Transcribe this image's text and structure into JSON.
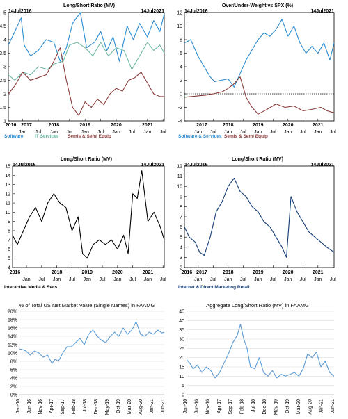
{
  "colors": {
    "blue": "#2a8bd0",
    "teal": "#6ab8a4",
    "maroon": "#8b3a3a",
    "navy": "#123a73",
    "black": "#000000",
    "lightblue": "#5b9bd5"
  },
  "chart_data": [
    {
      "type": "line",
      "title": "Long/Short Ratio (MV)",
      "date_left": "14Jul2016",
      "date_right": "14Jul2021",
      "ylim": [
        1,
        5
      ],
      "yticks": [
        "1",
        "1.5",
        "2",
        "2.5",
        "3",
        "3.5",
        "4",
        "4.5",
        "5"
      ],
      "years": [
        "2016",
        "2017",
        "2018",
        "2019",
        "2020",
        "2021"
      ],
      "months": [
        "Jan",
        "Jul",
        "Jan",
        "Jul",
        "Jan",
        "Jul",
        "Jan",
        "Jul",
        "Jan",
        "Jul"
      ],
      "series": [
        {
          "name": "Software",
          "color": "#2a8bd0",
          "x": [
            2016.54,
            2016.75,
            2016.95,
            2017.05,
            2017.25,
            2017.5,
            2017.75,
            2018.0,
            2018.2,
            2018.4,
            2018.6,
            2018.85,
            2019.05,
            2019.3,
            2019.5,
            2019.7,
            2019.9,
            2020.1,
            2020.35,
            2020.55,
            2020.75,
            2021.0,
            2021.2,
            2021.4,
            2021.54
          ],
          "y": [
            3.8,
            4.3,
            4.8,
            3.8,
            3.4,
            3.6,
            4.0,
            3.9,
            3.2,
            3.7,
            4.6,
            5.0,
            3.7,
            3.9,
            4.3,
            3.6,
            4.1,
            3.2,
            4.5,
            4.0,
            4.6,
            4.1,
            4.7,
            4.3,
            4.95
          ]
        },
        {
          "name": "IT Services",
          "color": "#6ab8a4",
          "x": [
            2016.54,
            2016.75,
            2017.0,
            2017.25,
            2017.5,
            2017.8,
            2018.0,
            2018.3,
            2018.5,
            2018.75,
            2019.0,
            2019.25,
            2019.5,
            2019.75,
            2020.0,
            2020.25,
            2020.5,
            2020.75,
            2021.0,
            2021.2,
            2021.4,
            2021.54
          ],
          "y": [
            2.7,
            2.5,
            2.8,
            2.7,
            3.0,
            2.9,
            3.1,
            3.2,
            3.8,
            3.9,
            3.7,
            3.4,
            3.9,
            3.4,
            3.7,
            3.6,
            2.9,
            3.4,
            3.9,
            3.6,
            3.8,
            3.5
          ]
        },
        {
          "name": "Semis & Semi Equip",
          "color": "#8b3a3a",
          "x": [
            2016.54,
            2016.75,
            2017.0,
            2017.25,
            2017.5,
            2017.75,
            2018.0,
            2018.2,
            2018.4,
            2018.6,
            2018.8,
            2019.0,
            2019.2,
            2019.4,
            2019.6,
            2019.8,
            2020.0,
            2020.2,
            2020.4,
            2020.6,
            2020.8,
            2021.0,
            2021.2,
            2021.4,
            2021.54
          ],
          "y": [
            2.0,
            2.3,
            2.8,
            2.5,
            2.6,
            2.7,
            3.2,
            3.7,
            2.5,
            1.5,
            1.2,
            1.7,
            1.5,
            1.8,
            1.6,
            2.0,
            2.2,
            2.1,
            2.5,
            2.6,
            2.8,
            2.4,
            2.0,
            1.9,
            1.9
          ]
        }
      ]
    },
    {
      "type": "line",
      "title": "Over/Under-Weight vs SPX (%)",
      "date_left": "14Jul2016",
      "date_right": "14Jul2021",
      "ylim": [
        -4,
        12
      ],
      "yticks": [
        "-4",
        "-2",
        "0",
        "2",
        "4",
        "6",
        "8",
        "10",
        "12"
      ],
      "years": [
        "2017",
        "2018",
        "2019",
        "2020",
        "2021"
      ],
      "months": [
        "Jan",
        "Jul",
        "Jan",
        "Jul",
        "Jan",
        "Jul",
        "Jan",
        "Jul",
        "Jan",
        "Jul"
      ],
      "series": [
        {
          "name": "Software & Services",
          "color": "#2a8bd0",
          "x": [
            2016.54,
            2016.75,
            2017.0,
            2017.2,
            2017.4,
            2017.55,
            2017.75,
            2018.0,
            2018.2,
            2018.4,
            2018.6,
            2018.8,
            2019.0,
            2019.2,
            2019.4,
            2019.6,
            2019.8,
            2020.0,
            2020.2,
            2020.4,
            2020.6,
            2020.8,
            2021.0,
            2021.2,
            2021.4,
            2021.54
          ],
          "y": [
            7.5,
            8.0,
            5.5,
            4.0,
            2.5,
            1.8,
            2.0,
            2.2,
            1.0,
            3.0,
            5.0,
            6.5,
            8.0,
            9.0,
            8.5,
            9.5,
            11.0,
            8.5,
            10.0,
            7.5,
            6.0,
            7.0,
            6.0,
            7.5,
            5.0,
            7.5
          ]
        },
        {
          "name": "Semis & Semi Equip",
          "color": "#8b3a3a",
          "x": [
            2016.54,
            2016.75,
            2017.0,
            2017.25,
            2017.5,
            2017.8,
            2018.0,
            2018.2,
            2018.4,
            2018.6,
            2018.8,
            2019.0,
            2019.3,
            2019.6,
            2019.9,
            2020.2,
            2020.5,
            2020.8,
            2021.1,
            2021.3,
            2021.54
          ],
          "y": [
            -0.5,
            -0.4,
            -0.3,
            -0.2,
            0.0,
            0.3,
            0.8,
            1.5,
            2.5,
            -0.5,
            -2.0,
            -3.0,
            -2.3,
            -1.5,
            -2.0,
            -1.8,
            -2.5,
            -2.3,
            -2.0,
            -2.5,
            -2.8
          ]
        }
      ],
      "zero_line": true
    },
    {
      "type": "line",
      "title": "Long/Short Ratio (MV)",
      "date_left": "14Jul2016",
      "date_right": "14Jul2021",
      "ylim": [
        4,
        15
      ],
      "yticks": [
        "4",
        "5",
        "6",
        "7",
        "8",
        "9",
        "10",
        "11",
        "12",
        "13",
        "14",
        "15"
      ],
      "years": [
        "2016",
        "2018",
        "2019",
        "2020",
        "2021"
      ],
      "months": [
        "Jan",
        "Jul",
        "Jan",
        "Jul",
        "Jan",
        "Jul",
        "Jan",
        "Jul",
        "Jan",
        "Jul"
      ],
      "series": [
        {
          "name": "Interactive Media & Svcs",
          "color": "#000000",
          "x": [
            2016.54,
            2016.7,
            2016.9,
            2017.1,
            2017.3,
            2017.5,
            2017.7,
            2017.9,
            2018.1,
            2018.3,
            2018.5,
            2018.7,
            2018.85,
            2019.0,
            2019.2,
            2019.4,
            2019.6,
            2019.8,
            2020.0,
            2020.2,
            2020.35,
            2020.5,
            2020.65,
            2020.8,
            2021.0,
            2021.2,
            2021.4,
            2021.54
          ],
          "y": [
            7.5,
            6.5,
            8.0,
            9.5,
            10.5,
            9.0,
            11.0,
            12.0,
            11.0,
            10.5,
            8.0,
            9.5,
            5.5,
            5.0,
            6.5,
            7.0,
            6.5,
            7.0,
            6.0,
            7.5,
            5.5,
            12.0,
            11.5,
            14.5,
            9.0,
            10.0,
            8.5,
            7.0
          ]
        }
      ]
    },
    {
      "type": "line",
      "title": "Long/Short Ratio (MV)",
      "date_left": "14Jul2016",
      "date_right": "14Jul2021",
      "ylim": [
        2,
        12
      ],
      "yticks": [
        "2",
        "3",
        "4",
        "5",
        "6",
        "7",
        "8",
        "9",
        "10",
        "11",
        "12"
      ],
      "years": [
        "2016",
        "2017",
        "2018",
        "2019",
        "2020",
        "2021"
      ],
      "months": [
        "Jan",
        "Jul",
        "Jan",
        "Jul",
        "Jan",
        "Jul",
        "Jan",
        "Jul",
        "Jan",
        "Jul"
      ],
      "series": [
        {
          "name": "Internet & Direct Marketing Retail",
          "color": "#123a73",
          "x": [
            2016.54,
            2016.7,
            2016.9,
            2017.05,
            2017.2,
            2017.4,
            2017.6,
            2017.8,
            2018.0,
            2018.2,
            2018.4,
            2018.6,
            2018.8,
            2019.0,
            2019.2,
            2019.4,
            2019.6,
            2019.8,
            2019.95,
            2020.1,
            2020.3,
            2020.5,
            2020.7,
            2020.9,
            2021.1,
            2021.3,
            2021.54
          ],
          "y": [
            6.0,
            5.0,
            4.5,
            3.5,
            3.2,
            5.0,
            7.5,
            8.5,
            10.0,
            10.8,
            9.5,
            9.0,
            8.0,
            7.5,
            6.5,
            6.0,
            5.0,
            4.0,
            3.0,
            9.0,
            7.5,
            6.5,
            5.5,
            5.0,
            4.5,
            4.0,
            3.5
          ]
        }
      ]
    },
    {
      "type": "line",
      "title": "% of Total US Net Market Value (Single Names) in FAAMG",
      "ylim": [
        0,
        20
      ],
      "yticks": [
        "0%",
        "2%",
        "4%",
        "6%",
        "8%",
        "10%",
        "12%",
        "14%",
        "16%",
        "18%",
        "20%"
      ],
      "xticks": [
        "Jan-16",
        "Jun-16",
        "Nov-16",
        "Apr-17",
        "Sep-17",
        "Feb-18",
        "Jul-18",
        "Dec-18",
        "May-19",
        "Oct-19",
        "Mar-20",
        "Aug-20",
        "Jan-21",
        "Jun-21"
      ],
      "series": [
        {
          "name": "",
          "color": "#5b9bd5",
          "x": [
            0,
            0.3,
            0.6,
            1.0,
            1.4,
            1.8,
            2.2,
            2.6,
            3.0,
            3.3,
            3.6,
            4.0,
            4.4,
            4.8,
            5.2,
            5.6,
            6.0,
            6.4,
            6.8,
            7.2,
            7.6,
            8.0,
            8.4,
            8.8,
            9.2,
            9.6,
            10.0,
            10.4,
            10.8,
            11.2,
            11.6,
            12.0,
            12.4,
            12.8,
            13.2,
            13.4
          ],
          "y": [
            11.0,
            10.8,
            10.5,
            9.5,
            10.5,
            10.0,
            9.0,
            9.5,
            7.5,
            8.5,
            8.0,
            10.0,
            11.5,
            11.5,
            12.5,
            13.5,
            12.0,
            14.5,
            15.5,
            14.0,
            13.0,
            12.5,
            14.0,
            15.0,
            14.0,
            16.0,
            14.5,
            15.5,
            17.5,
            14.5,
            14.0,
            15.0,
            14.5,
            15.5,
            14.8,
            15.0
          ]
        }
      ]
    },
    {
      "type": "line",
      "title": "Aggregate Long/Short Ratio (MV) in FAAMG",
      "ylim": [
        0,
        45
      ],
      "yticks": [
        "0",
        "5",
        "10",
        "15",
        "20",
        "25",
        "30",
        "35",
        "40",
        "45"
      ],
      "xticks": [
        "Jan-16",
        "Jun-16",
        "Nov-16",
        "Apr-17",
        "Sep-17",
        "Feb-18",
        "Jul-18",
        "Dec-18",
        "May-19",
        "Oct-19",
        "Mar-20",
        "Aug-20",
        "Jan-21",
        "Jun-21"
      ],
      "series": [
        {
          "name": "",
          "color": "#5b9bd5",
          "x": [
            0,
            0.3,
            0.6,
            1.0,
            1.4,
            1.8,
            2.2,
            2.6,
            3.0,
            3.4,
            3.8,
            4.2,
            4.6,
            4.9,
            5.2,
            5.5,
            5.8,
            6.2,
            6.6,
            7.0,
            7.4,
            7.8,
            8.2,
            8.6,
            9.0,
            9.4,
            9.8,
            10.2,
            10.6,
            11.0,
            11.4,
            11.8,
            12.2,
            12.6,
            13.0,
            13.4
          ],
          "y": [
            19.0,
            17.0,
            14.0,
            16.0,
            12.0,
            15.0,
            13.0,
            9.0,
            12.0,
            17.0,
            22.0,
            28.0,
            32.0,
            38.0,
            30.0,
            25.0,
            15.0,
            14.0,
            20.0,
            12.0,
            10.0,
            13.0,
            9.0,
            11.0,
            10.0,
            11.0,
            12.0,
            10.0,
            14.0,
            22.0,
            20.0,
            23.0,
            15.0,
            18.0,
            12.0,
            10.0
          ]
        }
      ]
    }
  ]
}
